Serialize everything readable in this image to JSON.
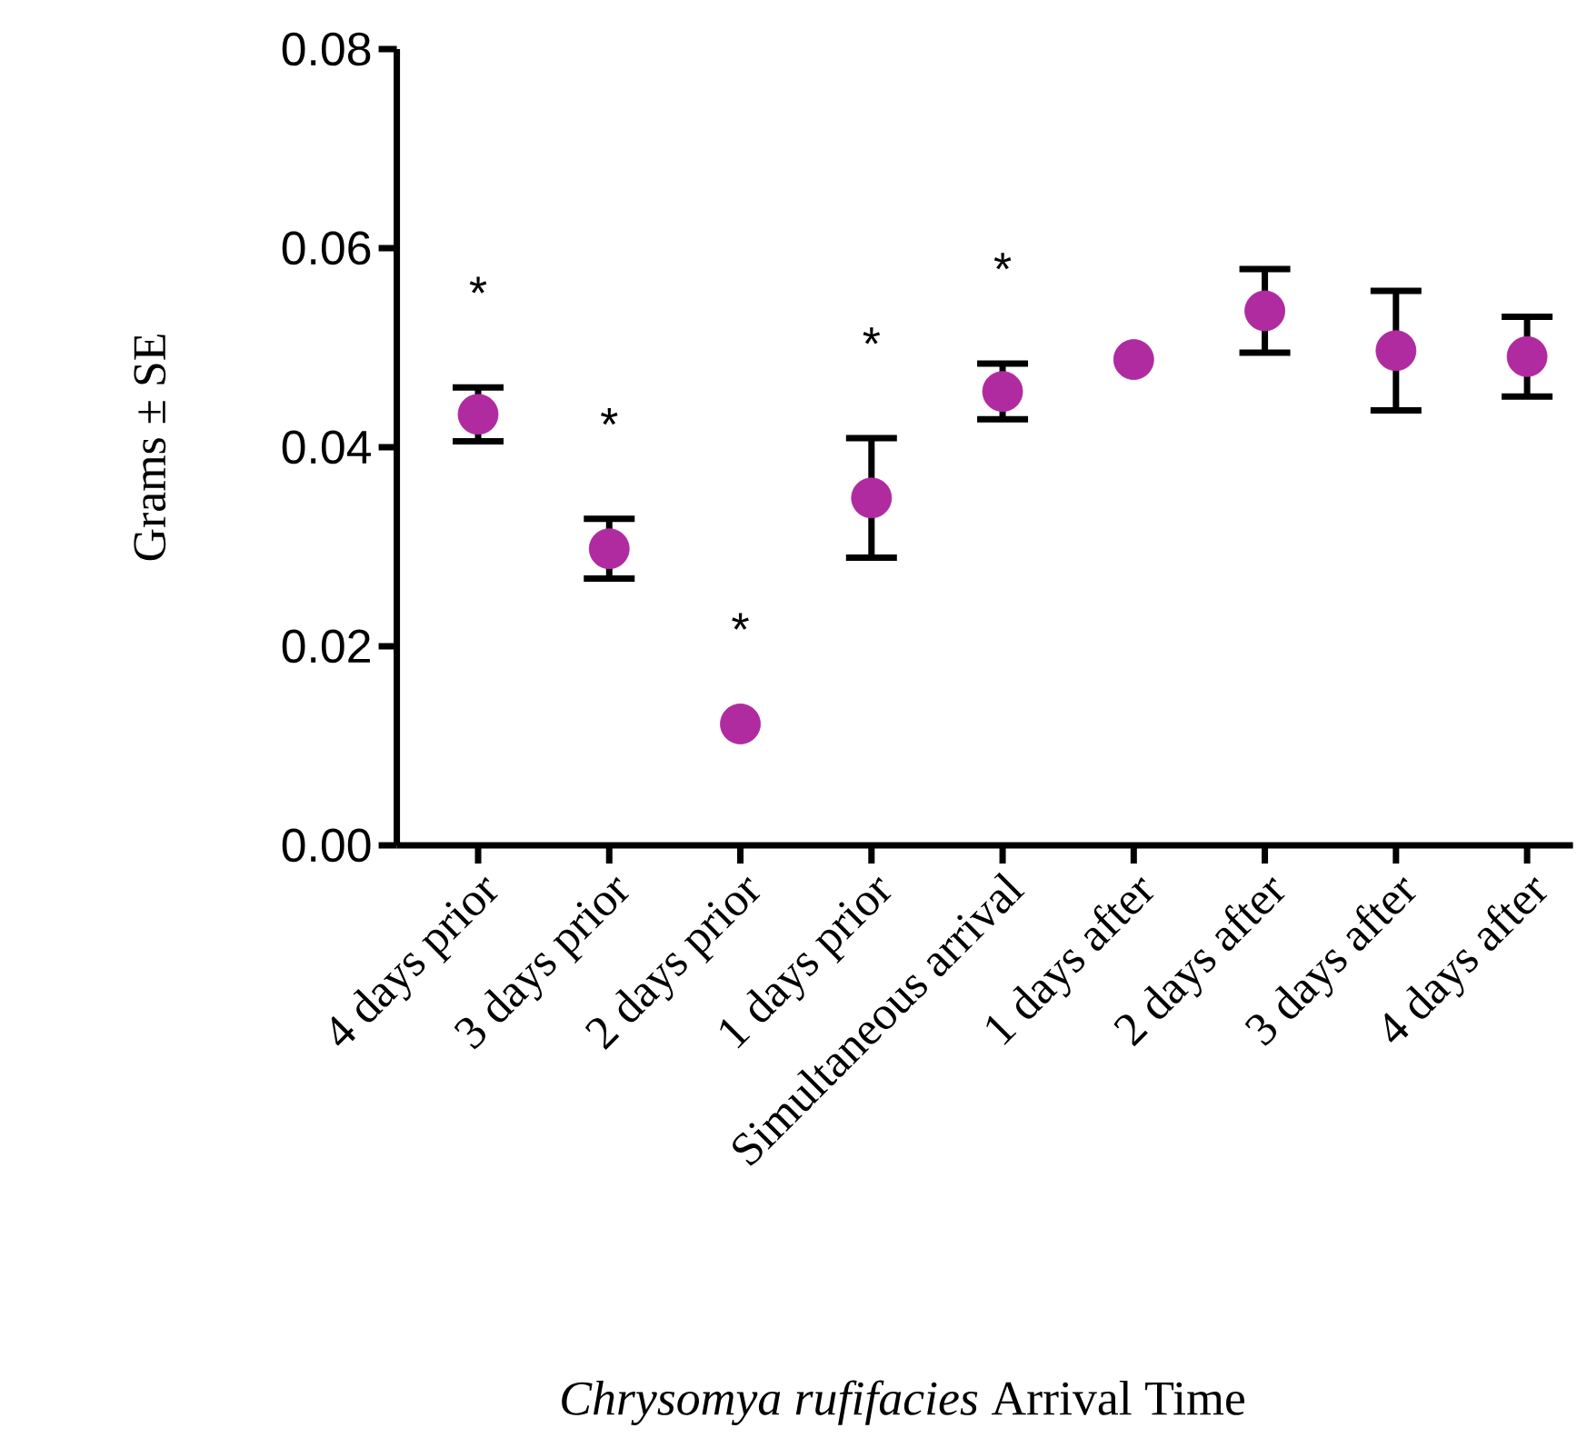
{
  "chart_data": {
    "type": "scatter",
    "xlabel": "*Chrysomya rufifacies* Arrival Time",
    "ylabel": "Grams ± SE",
    "categories": [
      "4 days prior",
      "3 days prior",
      "2 days prior",
      "1 days prior",
      "Simultaneous arrival",
      "1 days after",
      "2 days after",
      "3 days after",
      "4 days after"
    ],
    "values": [
      0.0433,
      0.0298,
      0.0122,
      0.0349,
      0.0456,
      0.0488,
      0.0537,
      0.0497,
      0.0491
    ],
    "errors": [
      0.0027,
      0.003,
      null,
      0.006,
      0.0028,
      null,
      0.0042,
      0.006,
      0.004
    ],
    "color": "#b02aa0",
    "ylim": [
      0,
      0.08
    ],
    "yticks": [
      {
        "value": 0,
        "label": "0.00"
      },
      {
        "value": 0.02,
        "label": "0.02"
      },
      {
        "value": 0.04,
        "label": "0.04"
      },
      {
        "value": 0.06,
        "label": "0.06"
      },
      {
        "value": 0.08,
        "label": "0.08"
      }
    ],
    "annotations": [
      "*",
      "*",
      "*",
      "*",
      "*"
    ]
  }
}
